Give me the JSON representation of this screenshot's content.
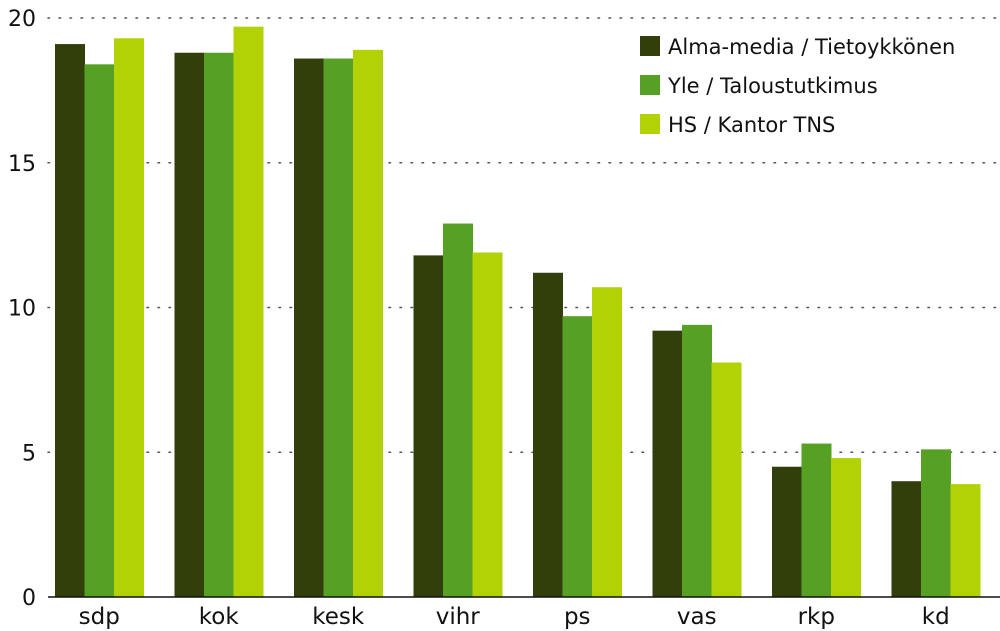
{
  "chart_data": {
    "type": "bar",
    "categories": [
      "sdp",
      "kok",
      "kesk",
      "vihr",
      "ps",
      "vas",
      "rkp",
      "kd"
    ],
    "series": [
      {
        "name": "Alma-media / Tietoykkönen",
        "color": "#333f0b",
        "values": [
          19.1,
          18.8,
          18.6,
          11.8,
          11.2,
          9.2,
          4.5,
          4.0
        ]
      },
      {
        "name": "Yle / Taloustutkimus",
        "color": "#56a124",
        "values": [
          18.4,
          18.8,
          18.6,
          12.9,
          9.7,
          9.4,
          5.3,
          5.1
        ]
      },
      {
        "name": "HS / Kantor TNS",
        "color": "#b2d206",
        "values": [
          19.3,
          19.7,
          18.9,
          11.9,
          10.7,
          8.1,
          4.8,
          3.9
        ]
      }
    ],
    "yticks": [
      "0",
      "5",
      "10",
      "15",
      "20"
    ],
    "ylim": [
      0,
      20
    ],
    "grid": "horizontal dotted",
    "legend_position": "top-right"
  }
}
